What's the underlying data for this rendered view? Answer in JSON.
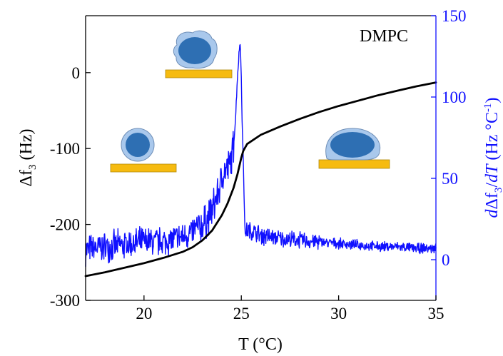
{
  "chart_data": {
    "type": "line",
    "annotation": "DMPC",
    "x_axis": {
      "label_prefix": "T (",
      "label_unit": "°C",
      "label_suffix": ")",
      "range": [
        17,
        35
      ],
      "ticks": [
        20,
        25,
        30,
        35
      ],
      "tick_labels": [
        "20",
        "25",
        "30",
        "35"
      ]
    },
    "y_left": {
      "label_main": "Δf",
      "label_sub": "3",
      "label_tail": " (Hz)",
      "range": [
        -300,
        75
      ],
      "ticks": [
        -300,
        -200,
        -100,
        0
      ],
      "tick_labels": [
        "-300",
        "-200",
        "-100",
        "0"
      ]
    },
    "y_right": {
      "label_d": "d",
      "label_df": "Δf",
      "label_sub": "3",
      "label_mid": "/",
      "label_dT": "dT",
      "label_unit_open": " (Hz °C",
      "label_sup": "-1",
      "label_close": ")",
      "range": [
        -25,
        150
      ],
      "ticks": [
        0,
        50,
        100,
        150
      ],
      "tick_labels": [
        "0",
        "50",
        "100",
        "150"
      ]
    },
    "colors": {
      "frequency": "#000000",
      "derivative": "#1010ff",
      "substrate": "#f6bb10",
      "vesicle_core": "#2e6fb3",
      "vesicle_shell": "#a9c8ec"
    },
    "series": [
      {
        "axis": "left",
        "x": [
          17,
          18,
          19,
          20,
          21,
          22,
          22.5,
          23,
          23.5,
          24,
          24.3,
          24.6,
          24.8,
          25.0,
          25.1,
          25.3,
          26,
          27,
          28,
          29,
          30,
          31,
          32,
          33,
          34,
          35
        ],
        "values": [
          -268,
          -263,
          -257,
          -251,
          -244,
          -236,
          -230,
          -221,
          -208,
          -188,
          -172,
          -152,
          -134,
          -112,
          -103,
          -94,
          -82,
          -71,
          -61,
          -52,
          -44,
          -37,
          -30,
          -24,
          -18,
          -13
        ]
      },
      {
        "axis": "right",
        "x": [
          17,
          18,
          19,
          20,
          21,
          22,
          22.5,
          23,
          23.3,
          23.6,
          23.9,
          24.1,
          24.3,
          24.5,
          24.6,
          24.7,
          24.8,
          24.9,
          24.95,
          25.0,
          25.05,
          25.1,
          25.15,
          25.2,
          25.3,
          25.6,
          26,
          27,
          28,
          29,
          30,
          31,
          32,
          33,
          34,
          35
        ],
        "values": [
          6,
          8,
          9,
          11,
          11,
          14,
          17,
          21,
          26,
          33,
          45,
          54,
          56,
          62,
          70,
          86,
          112,
          130,
          133,
          112,
          80,
          62,
          35,
          15,
          18,
          17,
          15,
          13,
          12,
          11,
          10,
          9,
          8,
          8,
          7,
          7
        ]
      }
    ]
  }
}
